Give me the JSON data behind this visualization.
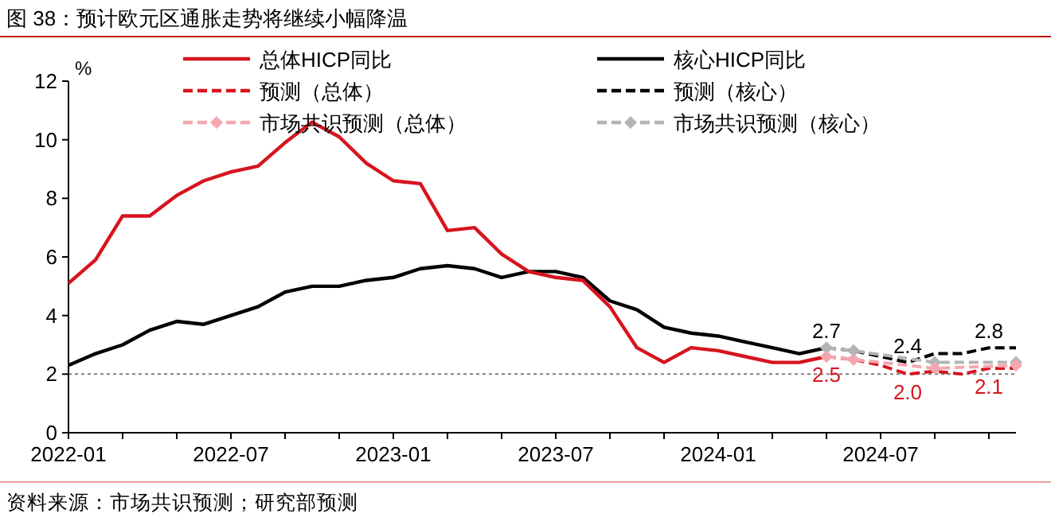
{
  "chart_data": {
    "type": "line",
    "title": "图 38：预计欧元区通胀走势将继续小幅降温",
    "ylabel": "%",
    "xlim": [
      "2022-01",
      "2024-12"
    ],
    "xticks": [
      "2022-01",
      {
        "value": "2022-03",
        "label": null
      },
      {
        "value": "2022-05",
        "label": null
      },
      "2022-07",
      {
        "value": "2022-09",
        "label": null
      },
      {
        "value": "2022-11",
        "label": null
      },
      "2023-01",
      {
        "value": "2023-03",
        "label": null
      },
      {
        "value": "2023-05",
        "label": null
      },
      "2023-07",
      {
        "value": "2023-09",
        "label": null
      },
      {
        "value": "2023-11",
        "label": null
      },
      "2024-01",
      {
        "value": "2024-03",
        "label": null
      },
      {
        "value": "2024-05",
        "label": null
      },
      "2024-07",
      {
        "value": "2024-09",
        "label": null
      },
      {
        "value": "2024-11",
        "label": null
      }
    ],
    "ylim": [
      0,
      12
    ],
    "yticks": [
      0,
      2,
      4,
      6,
      8,
      10,
      12
    ],
    "grid": false,
    "legend": "top",
    "series": [
      {
        "name": "总体HICP同比",
        "color": "#d7141e",
        "line_style": "solid",
        "marker": "none",
        "x": [
          "2022-01",
          "2022-02",
          "2022-03",
          "2022-04",
          "2022-05",
          "2022-06",
          "2022-07",
          "2022-08",
          "2022-09",
          "2022-10",
          "2022-11",
          "2022-12",
          "2023-01",
          "2023-02",
          "2023-03",
          "2023-04",
          "2023-05",
          "2023-06",
          "2023-07",
          "2023-08",
          "2023-09",
          "2023-10",
          "2023-11",
          "2023-12",
          "2024-01",
          "2024-02",
          "2024-03",
          "2024-04",
          "2024-05"
        ],
        "values": [
          5.1,
          5.9,
          7.4,
          7.4,
          8.1,
          8.6,
          8.9,
          9.1,
          9.9,
          10.6,
          10.1,
          9.2,
          8.6,
          8.5,
          6.9,
          7.0,
          6.1,
          5.5,
          5.3,
          5.2,
          4.3,
          2.9,
          2.4,
          2.9,
          2.8,
          2.6,
          2.4,
          2.4,
          2.6
        ]
      },
      {
        "name": "核心HICP同比",
        "color": "#000000",
        "line_style": "solid",
        "marker": "none",
        "x": [
          "2022-01",
          "2022-02",
          "2022-03",
          "2022-04",
          "2022-05",
          "2022-06",
          "2022-07",
          "2022-08",
          "2022-09",
          "2022-10",
          "2022-11",
          "2022-12",
          "2023-01",
          "2023-02",
          "2023-03",
          "2023-04",
          "2023-05",
          "2023-06",
          "2023-07",
          "2023-08",
          "2023-09",
          "2023-10",
          "2023-11",
          "2023-12",
          "2024-01",
          "2024-02",
          "2024-03",
          "2024-04",
          "2024-05"
        ],
        "values": [
          2.3,
          2.7,
          3.0,
          3.5,
          3.8,
          3.7,
          4.0,
          4.3,
          4.8,
          5.0,
          5.0,
          5.2,
          5.3,
          5.6,
          5.7,
          5.6,
          5.3,
          5.5,
          5.5,
          5.3,
          4.5,
          4.2,
          3.6,
          3.4,
          3.3,
          3.1,
          2.9,
          2.7,
          2.9
        ]
      },
      {
        "name": "预测（总体）",
        "color": "#d7141e",
        "line_style": "dashed",
        "marker": "none",
        "x": [
          "2024-05",
          "2024-06",
          "2024-07",
          "2024-08",
          "2024-09",
          "2024-10",
          "2024-11",
          "2024-12"
        ],
        "values": [
          2.6,
          2.5,
          2.3,
          2.0,
          2.1,
          2.0,
          2.2,
          2.2
        ]
      },
      {
        "name": "预测（核心）",
        "color": "#000000",
        "line_style": "dashed",
        "marker": "none",
        "x": [
          "2024-05",
          "2024-06",
          "2024-07",
          "2024-08",
          "2024-09",
          "2024-10",
          "2024-11",
          "2024-12"
        ],
        "values": [
          2.9,
          2.8,
          2.6,
          2.4,
          2.7,
          2.7,
          2.9,
          2.9
        ]
      },
      {
        "name": "市场共识预测（总体）",
        "color": "#f4a7b0",
        "line_style": "dashed",
        "marker": "diamond",
        "x": [
          "2024-05",
          "2024-06",
          "2024-09",
          "2024-12"
        ],
        "values": [
          2.6,
          2.5,
          2.2,
          2.3
        ]
      },
      {
        "name": "市场共识预测（核心）",
        "color": "#b4b4b4",
        "line_style": "dashed",
        "marker": "diamond",
        "x": [
          "2024-05",
          "2024-06",
          "2024-09",
          "2024-12"
        ],
        "values": [
          2.9,
          2.8,
          2.4,
          2.4
        ]
      }
    ],
    "ref_lines": [
      {
        "axis": "y",
        "value": 2,
        "color": "#7f7f7f",
        "line_style": "dotted"
      }
    ],
    "annotations": [
      {
        "text": "2.7",
        "x": "2024-05",
        "y": 2.9
      },
      {
        "text": "2.5",
        "x": "2024-05",
        "y": 2.6
      },
      {
        "text": "2.4",
        "x": "2024-08",
        "y": 2.4
      },
      {
        "text": "2.0",
        "x": "2024-08",
        "y": 2.0
      },
      {
        "text": "2.8",
        "x": "2024-11",
        "y": 2.9
      },
      {
        "text": "2.1",
        "x": "2024-11",
        "y": 2.2
      },
      "资料来源：市场共识预测；研究部预测"
    ]
  }
}
